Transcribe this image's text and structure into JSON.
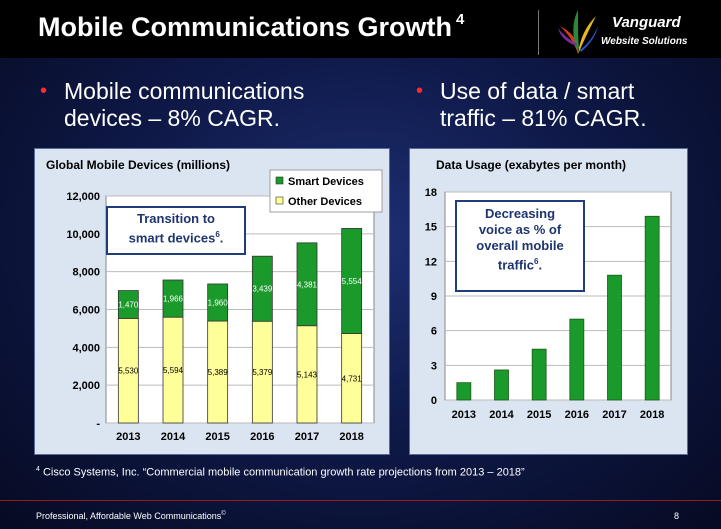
{
  "header": {
    "title": "Mobile Communications Growth",
    "title_sup": "4",
    "brand_name": "Vanguard",
    "brand_sub": "Website Solutions"
  },
  "bullets": [
    {
      "line1": "Mobile communications",
      "line2": "devices – 8% CAGR."
    },
    {
      "line1": "Use of data / smart",
      "line2": "traffic – 81% CAGR."
    }
  ],
  "left_callout": {
    "line1": "Transition to",
    "line2": "smart devices",
    "sup": "6",
    "end": "."
  },
  "right_callout": {
    "line1": "Decreasing",
    "line2": "voice as % of",
    "line3": "overall mobile",
    "line4": "traffic",
    "sup": "6",
    "end": "."
  },
  "footnote": {
    "sup": "4",
    "text": " Cisco Systems, Inc. “Commercial mobile communication growth rate projections  from 2013 – 2018”"
  },
  "footer": {
    "left": "Professional, Affordable Web Communications",
    "left_sup": "©",
    "page": "8"
  },
  "colors": {
    "smart": "#1a9a2a",
    "other": "#ffff99",
    "data_bar": "#1a9a2a",
    "bullet": "#ff2a2a"
  },
  "chart_data": [
    {
      "type": "bar",
      "stacked": true,
      "title": "Global Mobile Devices (millions)",
      "categories": [
        "2013",
        "2014",
        "2015",
        "2016",
        "2017",
        "2018"
      ],
      "series": [
        {
          "name": "Other Devices",
          "values": [
            5530,
            5594,
            5389,
            5379,
            5143,
            4731
          ],
          "labels": [
            "5,530",
            "5,594",
            "5,389",
            "5,379",
            "5,143",
            "4,731"
          ]
        },
        {
          "name": "Smart Devices",
          "values": [
            1470,
            1966,
            1960,
            3439,
            4381,
            5554
          ],
          "labels": [
            "1,470",
            "1,966",
            "1,960",
            "3,439",
            "4,381",
            "5,554"
          ]
        }
      ],
      "legend": [
        "Smart Devices",
        "Other Devices"
      ],
      "ylim": [
        0,
        12000
      ],
      "yticks": [
        0,
        2000,
        4000,
        6000,
        8000,
        10000,
        12000
      ],
      "ytick_labels": [
        "-",
        "2,000",
        "4,000",
        "6,000",
        "8,000",
        "10,000",
        "12,000"
      ]
    },
    {
      "type": "bar",
      "title": "Data Usage (exabytes per month)",
      "categories": [
        "2013",
        "2014",
        "2015",
        "2016",
        "2017",
        "2018"
      ],
      "values": [
        1.5,
        2.6,
        4.4,
        7.0,
        10.8,
        15.9
      ],
      "ylim": [
        0,
        18
      ],
      "yticks": [
        0,
        3,
        6,
        9,
        12,
        15,
        18
      ],
      "ytick_labels": [
        "0",
        "3",
        "6",
        "9",
        "12",
        "15",
        "18"
      ]
    }
  ]
}
